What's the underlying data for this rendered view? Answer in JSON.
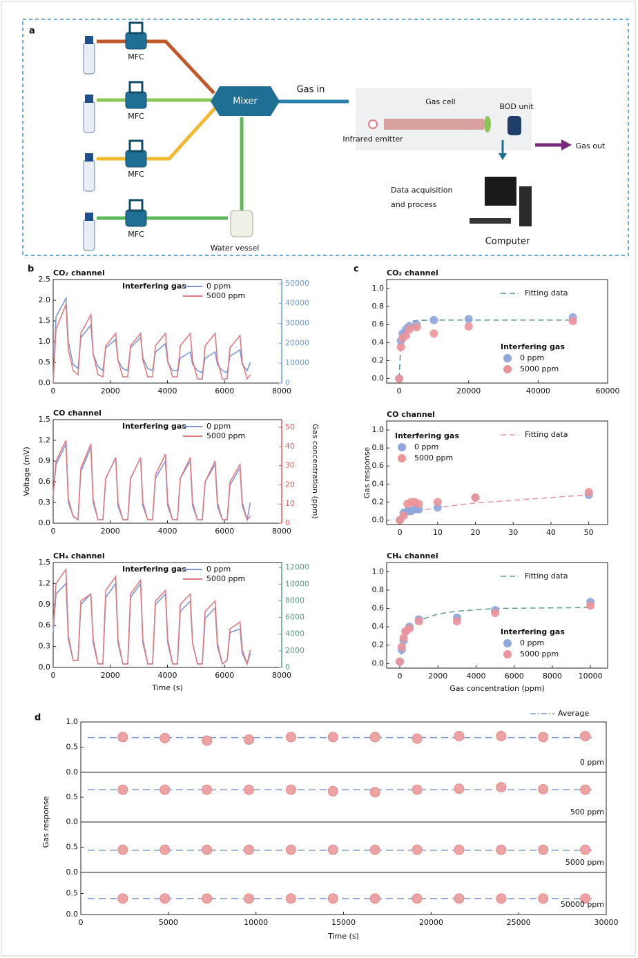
{
  "diagram": {
    "panel_label": "a",
    "mfc_labels": [
      "MFC",
      "MFC",
      "MFC",
      "MFC"
    ],
    "mixer": "Mixer",
    "gas_in": "Gas in",
    "gas_cell": "Gas cell",
    "bod_unit": "BOD unit",
    "emitter": "Infrared emitter",
    "gas_out": "Gas out",
    "data_acquisition": [
      "Data acquisition",
      "and process"
    ],
    "computer": "Computer",
    "water_vessel": "Water vessel"
  },
  "panel_labels": [
    "b",
    "c",
    "d"
  ],
  "chart_data": [
    {
      "type": "line",
      "title": "CO₂ channel",
      "legend_title": "Interfering gas",
      "x": [
        0,
        100,
        450,
        530,
        700,
        870,
        970,
        1320,
        1400,
        1570,
        1740,
        1840,
        2190,
        2270,
        2440,
        2610,
        2710,
        3060,
        3140,
        3310,
        3480,
        3580,
        3930,
        4010,
        4180,
        4350,
        4450,
        4800,
        4880,
        5050,
        5220,
        5320,
        5670,
        5750,
        5920,
        6090,
        6190,
        6540,
        6620,
        6790,
        6900
      ],
      "series": [
        {
          "name": "0 ppm",
          "color": "#7b96d4",
          "values": [
            0,
            1.6,
            2.05,
            1.0,
            0.45,
            0.35,
            1.1,
            1.4,
            0.7,
            0.4,
            0.3,
            0.85,
            1.05,
            0.55,
            0.35,
            0.3,
            0.85,
            1.1,
            0.6,
            0.35,
            0.3,
            0.75,
            0.95,
            0.5,
            0.3,
            0.3,
            0.6,
            0.75,
            0.45,
            0.3,
            0.25,
            0.6,
            0.75,
            0.45,
            0.3,
            0.25,
            0.65,
            0.8,
            0.45,
            0.3,
            0.5
          ]
        },
        {
          "name": "5000 ppm",
          "color": "#e07a80",
          "values": [
            0,
            1.3,
            1.9,
            0.8,
            0.3,
            0.2,
            1.2,
            1.65,
            0.7,
            0.2,
            0.15,
            0.9,
            1.2,
            0.55,
            0.15,
            0.15,
            0.9,
            1.2,
            0.55,
            0.15,
            0.15,
            0.9,
            1.2,
            0.55,
            0.15,
            0.15,
            0.9,
            1.2,
            0.55,
            0.1,
            0.1,
            0.9,
            1.2,
            0.55,
            0.1,
            0.1,
            0.85,
            1.15,
            0.5,
            0.1,
            0.2
          ]
        }
      ],
      "xlim": [
        0,
        8000
      ],
      "xticks": [
        0,
        2000,
        4000,
        6000,
        8000
      ],
      "ylim": [
        0,
        2.5
      ],
      "yticks": [
        {
          "value": 0,
          "label": "0.0"
        },
        0.5,
        {
          "value": 1,
          "label": "1.0"
        },
        1.5,
        {
          "value": 2,
          "label": "2.0"
        },
        2.5
      ],
      "y2lim": [
        0,
        52000
      ],
      "y2ticks": [
        0,
        10000,
        20000,
        30000,
        40000,
        50000
      ],
      "y2color": "#6f9bd6"
    },
    {
      "type": "line",
      "title": "CO channel",
      "legend_title": "Interfering gas",
      "ylabel": "Voltage (mV)",
      "y2label": "Gas concentration (ppm)",
      "x": [
        0,
        100,
        450,
        530,
        700,
        870,
        970,
        1320,
        1400,
        1570,
        1740,
        1840,
        2190,
        2270,
        2440,
        2610,
        2710,
        3060,
        3140,
        3310,
        3480,
        3580,
        3930,
        4010,
        4180,
        4350,
        4450,
        4800,
        4880,
        5050,
        5220,
        5320,
        5670,
        5750,
        5920,
        6090,
        6190,
        6540,
        6620,
        6790,
        6900
      ],
      "series": [
        {
          "name": "0 ppm",
          "color": "#7b96d4",
          "values": [
            0.4,
            0.85,
            1.15,
            0.3,
            0.1,
            0.05,
            0.75,
            1.1,
            0.3,
            0.05,
            0.05,
            0.65,
            0.95,
            0.25,
            0.05,
            0.05,
            0.65,
            0.95,
            0.25,
            0.05,
            0.05,
            0.65,
            0.9,
            0.25,
            0.05,
            0.05,
            0.65,
            0.9,
            0.25,
            0.05,
            0.05,
            0.6,
            0.85,
            0.25,
            0.05,
            0.05,
            0.55,
            0.8,
            0.25,
            0.05,
            0.3
          ]
        },
        {
          "name": "5000 ppm",
          "color": "#e07a80",
          "values": [
            0.4,
            0.9,
            1.2,
            0.35,
            0.1,
            0.05,
            0.8,
            1.15,
            0.35,
            0.05,
            0.05,
            0.65,
            0.95,
            0.3,
            0.05,
            0.05,
            0.65,
            0.95,
            0.3,
            0.05,
            0.05,
            0.7,
            1.0,
            0.3,
            0.05,
            0.05,
            0.65,
            0.95,
            0.3,
            0.05,
            0.05,
            0.6,
            0.9,
            0.3,
            0.05,
            0.05,
            0.6,
            0.85,
            0.3,
            0.05,
            0.1
          ]
        }
      ],
      "xlim": [
        0,
        8000
      ],
      "xticks": [
        0,
        2000,
        4000,
        6000,
        8000
      ],
      "ylim": [
        0,
        1.5
      ],
      "yticks": [
        {
          "value": 0,
          "label": "0.0"
        },
        0.3,
        0.6,
        0.9,
        1.2,
        1.5
      ],
      "y2lim": [
        0,
        54
      ],
      "y2ticks": [
        0,
        10,
        20,
        30,
        40,
        50
      ],
      "y2color": "#d95c5c"
    },
    {
      "type": "line",
      "title": "CH₄ channel",
      "legend_title": "Interfering gas",
      "xlabel": "Time (s)",
      "x": [
        0,
        100,
        450,
        530,
        700,
        870,
        970,
        1320,
        1400,
        1570,
        1740,
        1840,
        2190,
        2270,
        2440,
        2610,
        2710,
        3060,
        3140,
        3310,
        3480,
        3580,
        3930,
        4010,
        4180,
        4350,
        4450,
        4800,
        4880,
        5050,
        5220,
        5320,
        5670,
        5750,
        5920,
        6090,
        6190,
        6540,
        6620,
        6790,
        6900
      ],
      "series": [
        {
          "name": "0 ppm",
          "color": "#7b96d4",
          "values": [
            0.5,
            1.05,
            1.2,
            0.4,
            0.1,
            0.1,
            0.9,
            1.05,
            0.35,
            0.05,
            0.05,
            1.0,
            1.2,
            0.35,
            0.05,
            0.05,
            1.0,
            1.2,
            0.35,
            0.05,
            0.05,
            0.9,
            1.05,
            0.35,
            0.05,
            0.05,
            0.8,
            0.95,
            0.35,
            0.05,
            0.05,
            0.7,
            0.85,
            0.3,
            0.05,
            0.1,
            0.5,
            0.55,
            0.2,
            0.05,
            0.2
          ]
        },
        {
          "name": "5000 ppm",
          "color": "#e07a80",
          "values": [
            0.6,
            1.2,
            1.4,
            0.45,
            0.1,
            0.1,
            0.95,
            1.05,
            0.4,
            0.05,
            0.05,
            1.1,
            1.3,
            0.4,
            0.05,
            0.05,
            1.05,
            1.25,
            0.4,
            0.05,
            0.05,
            0.95,
            1.1,
            0.4,
            0.05,
            0.05,
            0.9,
            1.05,
            0.35,
            0.05,
            0.05,
            0.8,
            0.95,
            0.35,
            0.05,
            0.1,
            0.55,
            0.65,
            0.25,
            0.05,
            0.25
          ]
        }
      ],
      "xlim": [
        0,
        8000
      ],
      "xticks": [
        0,
        2000,
        4000,
        6000,
        8000
      ],
      "ylim": [
        0,
        1.5
      ],
      "yticks": [
        {
          "value": 0,
          "label": "0.0"
        },
        0.3,
        0.6,
        0.9,
        1.2,
        1.5
      ],
      "y2lim": [
        0,
        12600
      ],
      "y2ticks": [
        0,
        2000,
        4000,
        6000,
        8000,
        10000,
        12000
      ],
      "y2color": "#5f9a8f"
    },
    {
      "type": "scatter",
      "title": "CO₂ channel",
      "legend_title": "Interfering gas",
      "legend": "lower right",
      "x": [
        0,
        500,
        1000,
        2000,
        3000,
        5000,
        10000,
        20000,
        50000
      ],
      "series": [
        {
          "name": "0 ppm",
          "color": "#8ea6dc",
          "values": [
            0,
            0.42,
            0.5,
            0.55,
            0.58,
            0.6,
            0.65,
            0.66,
            0.68
          ]
        },
        {
          "name": "5000 ppm",
          "color": "#ec9499",
          "values": [
            0,
            0.35,
            0.45,
            0.48,
            0.55,
            0.57,
            0.5,
            0.58,
            0.64
          ]
        }
      ],
      "fit": {
        "name": "Fitting data",
        "color": "#4a86a8",
        "x": [
          0,
          500,
          1000,
          2000,
          3000,
          5000,
          10000,
          20000,
          35000,
          50000
        ],
        "values": [
          0,
          0.42,
          0.55,
          0.6,
          0.63,
          0.645,
          0.65,
          0.65,
          0.65,
          0.65
        ]
      },
      "xlim": [
        -3600,
        60000
      ],
      "xticks": [
        0,
        20000,
        40000,
        60000
      ],
      "ylim": [
        -0.05,
        1.1
      ],
      "yticks": [
        {
          "value": 0,
          "label": "0.0"
        },
        0.2,
        0.4,
        0.6,
        0.8,
        {
          "value": 1,
          "label": "1.0"
        }
      ]
    },
    {
      "type": "scatter",
      "title": "CO channel",
      "legend_title": "Interfering gas",
      "legend": "upper left",
      "ylabel": "Gas response",
      "x": [
        0,
        1,
        2,
        3,
        4,
        5,
        10,
        20,
        50
      ],
      "series": [
        {
          "name": "0 ppm",
          "color": "#8ea6dc",
          "values": [
            0,
            0.08,
            0.1,
            0.1,
            0.12,
            0.12,
            0.14,
            0.25,
            0.28
          ]
        },
        {
          "name": "5000 ppm",
          "color": "#ec9499",
          "values": [
            0,
            0.05,
            0.18,
            0.2,
            0.2,
            0.18,
            0.2,
            0.25,
            0.31
          ]
        }
      ],
      "fit": {
        "name": "Fitting data",
        "color": "#e8969a",
        "x": [
          0,
          5,
          10,
          20,
          30,
          40,
          50
        ],
        "values": [
          0.02,
          0.1,
          0.14,
          0.19,
          0.22,
          0.25,
          0.28
        ]
      },
      "xlim": [
        -3.5,
        55
      ],
      "xticks": [
        0,
        10,
        20,
        30,
        40,
        50
      ],
      "ylim": [
        -0.05,
        1.1
      ],
      "yticks": [
        {
          "value": 0,
          "label": "0.0"
        },
        0.2,
        0.4,
        0.6,
        0.8,
        {
          "value": 1,
          "label": "1.0"
        }
      ]
    },
    {
      "type": "scatter",
      "title": "CH₄ channel",
      "legend_title": "Interfering gas",
      "legend": "lower right",
      "xlabel": "Gas concentration (ppm)",
      "x": [
        0,
        100,
        200,
        300,
        500,
        1000,
        3000,
        5000,
        10000
      ],
      "series": [
        {
          "name": "0 ppm",
          "color": "#8ea6dc",
          "values": [
            0.02,
            0.15,
            0.25,
            0.35,
            0.4,
            0.48,
            0.5,
            0.58,
            0.67
          ]
        },
        {
          "name": "5000 ppm",
          "color": "#ec9499",
          "values": [
            0.02,
            0.18,
            0.28,
            0.35,
            0.38,
            0.46,
            0.46,
            0.55,
            0.63
          ]
        }
      ],
      "fit": {
        "name": "Fitting data",
        "color": "#5f9a8f",
        "x": [
          0,
          100,
          300,
          500,
          1000,
          2000,
          3000,
          5000,
          10000
        ],
        "values": [
          0,
          0.15,
          0.3,
          0.38,
          0.47,
          0.54,
          0.57,
          0.6,
          0.61
        ]
      },
      "xlim": [
        -690,
        10900
      ],
      "xticks": [
        0,
        2000,
        4000,
        6000,
        8000,
        10000
      ],
      "ylim": [
        -0.05,
        1.1
      ],
      "yticks": [
        {
          "value": 0,
          "label": "0.0"
        },
        0.2,
        0.4,
        0.6,
        0.8,
        {
          "value": 1,
          "label": "1.0"
        }
      ]
    },
    {
      "type": "stability",
      "label": "0 ppm",
      "legend_label": "Average",
      "color": "#eda3a3",
      "average_color": "#7b96d4",
      "x": [
        2400,
        4800,
        7200,
        9600,
        12000,
        14400,
        16800,
        19200,
        21600,
        24000,
        26400,
        28800
      ],
      "values": [
        0.7,
        0.68,
        0.63,
        0.65,
        0.7,
        0.7,
        0.7,
        0.67,
        0.72,
        0.72,
        0.7,
        0.72
      ],
      "average": 0.69,
      "xlim": [
        0,
        30000
      ],
      "ylim": [
        0,
        1
      ],
      "yticks": [
        {
          "value": 0,
          "label": "0.0"
        },
        0.5,
        {
          "value": 1,
          "label": "1.0"
        }
      ]
    },
    {
      "type": "stability",
      "label": "500 ppm",
      "ylabel": "Gas response",
      "color": "#eda3a3",
      "average_color": "#7b96d4",
      "x": [
        2400,
        4800,
        7200,
        9600,
        12000,
        14400,
        16800,
        19200,
        21600,
        24000,
        26400,
        28800
      ],
      "values": [
        0.65,
        0.65,
        0.65,
        0.65,
        0.65,
        0.62,
        0.6,
        0.65,
        0.67,
        0.7,
        0.66,
        0.65
      ],
      "average": 0.65,
      "xlim": [
        0,
        30000
      ],
      "ylim": [
        0,
        1
      ],
      "yticks": [
        {
          "value": 0,
          "label": "0.0"
        },
        0.5
      ]
    },
    {
      "type": "stability",
      "label": "5000 ppm",
      "color": "#eda3a3",
      "average_color": "#7b96d4",
      "x": [
        2400,
        4800,
        7200,
        9600,
        12000,
        14400,
        16800,
        19200,
        21600,
        24000,
        26400,
        28800
      ],
      "values": [
        0.45,
        0.45,
        0.45,
        0.45,
        0.45,
        0.45,
        0.45,
        0.45,
        0.45,
        0.45,
        0.45,
        0.45
      ],
      "average": 0.44,
      "xlim": [
        0,
        30000
      ],
      "ylim": [
        0,
        1
      ],
      "yticks": [
        {
          "value": 0,
          "label": "0.0"
        },
        0.5
      ]
    },
    {
      "type": "stability",
      "label": "50000 ppm",
      "xlabel": "Time (s)",
      "color": "#eda3a3",
      "average_color": "#7b96d4",
      "x": [
        2400,
        4800,
        7200,
        9600,
        12000,
        14400,
        16800,
        19200,
        21600,
        24000,
        26400,
        28800
      ],
      "values": [
        0.38,
        0.38,
        0.38,
        0.38,
        0.38,
        0.38,
        0.38,
        0.38,
        0.38,
        0.38,
        0.38,
        0.38
      ],
      "average": 0.38,
      "xlim": [
        0,
        30000
      ],
      "ylim": [
        0,
        1
      ],
      "yticks": [
        {
          "value": 0,
          "label": "0.0"
        },
        0.5
      ],
      "xticks": [
        0,
        5000,
        10000,
        15000,
        20000,
        25000,
        30000
      ]
    }
  ]
}
